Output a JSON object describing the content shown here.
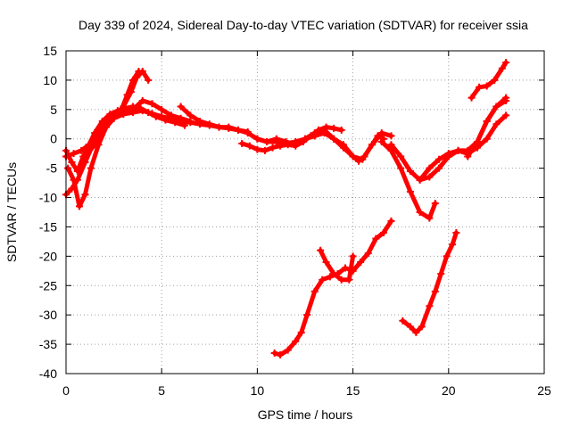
{
  "chart_data": {
    "type": "scatter",
    "title": "Day 339 of 2024, Sidereal Day-to-day VTEC variation (SDTVAR) for receiver ssia",
    "xlabel": "GPS time / hours",
    "ylabel": "SDTVAR / TECUs",
    "xlim": [
      0,
      25
    ],
    "ylim": [
      -40,
      15
    ],
    "xticks": [
      "0",
      "5",
      "10",
      "15",
      "20",
      "25"
    ],
    "yticks": [
      "15",
      "10",
      "5",
      "0",
      "-5",
      "-10",
      "-15",
      "-20",
      "-25",
      "-30",
      "-35",
      "-40"
    ],
    "grid": true,
    "marker": "plus",
    "series_color": "#ff0000",
    "series": [
      {
        "x": [
          0.0,
          0.4,
          0.8,
          1.2,
          1.6,
          2.0,
          2.5,
          3.0,
          3.5,
          4.0,
          4.5,
          5.0,
          5.5,
          6.0,
          6.5,
          7.0,
          7.5,
          8.0,
          8.5,
          9.0,
          9.5
        ],
        "values": [
          -3,
          -2.5,
          -2,
          -1,
          0.5,
          2.5,
          3.5,
          4.2,
          4.5,
          4.8,
          4.3,
          3.8,
          3.5,
          3.0,
          2.8,
          2.5,
          2.3,
          2.0,
          1.8,
          1.5,
          1.2
        ]
      },
      {
        "x": [
          0.0,
          0.3,
          0.6,
          1.0,
          1.4,
          1.8,
          2.2,
          2.6,
          3.0,
          3.4,
          3.7,
          4.0,
          4.3
        ],
        "values": [
          -9.5,
          -8.5,
          -7,
          -4,
          -1,
          1.5,
          3,
          4,
          5.5,
          8,
          10.5,
          11.5,
          10
        ]
      },
      {
        "x": [
          0.1,
          0.4,
          0.7,
          1.0,
          1.3,
          1.7,
          2.1,
          2.5,
          2.9,
          3.2,
          3.5,
          3.8
        ],
        "values": [
          -5,
          -7,
          -11.5,
          -9.5,
          -5,
          -1,
          2,
          3.5,
          5,
          7.5,
          10,
          11.5
        ]
      },
      {
        "x": [
          0.0,
          0.3,
          0.6,
          0.9,
          1.2,
          1.5,
          1.9,
          2.3,
          2.7,
          3.1,
          3.5,
          3.9,
          4.3,
          4.7,
          5.2,
          5.7,
          6.2
        ],
        "values": [
          -2,
          -4,
          -5.5,
          -3,
          -1,
          1,
          3,
          4.2,
          4.8,
          5.2,
          5.5,
          5.2,
          4.5,
          3.8,
          3.2,
          2.8,
          2.3
        ]
      },
      {
        "x": [
          1.0,
          1.5,
          2.0,
          2.5,
          3.0,
          3.5,
          4.0,
          4.5,
          5.0,
          5.5,
          6.0,
          6.5
        ],
        "values": [
          -3,
          -1,
          2,
          4,
          4.5,
          5,
          6.5,
          6,
          5,
          4,
          3.5,
          3
        ]
      },
      {
        "x": [
          6.0,
          6.5,
          7.0,
          7.5,
          8.0,
          8.5,
          9.0,
          9.5,
          10.0,
          10.5,
          11.0,
          11.5,
          12.0,
          12.5,
          13.0
        ],
        "values": [
          5.5,
          4,
          3,
          2.5,
          2,
          2,
          1.5,
          1,
          0,
          -0.5,
          -0.5,
          -0.8,
          -0.5,
          0,
          0.5
        ]
      },
      {
        "x": [
          9.2,
          9.6,
          10.0,
          10.4,
          10.8,
          11.2,
          11.6,
          12.0,
          12.4,
          12.8,
          13.2,
          13.6,
          14.0,
          14.4
        ],
        "values": [
          -0.8,
          -1.2,
          -1.8,
          -2,
          -1.5,
          -1.2,
          -1,
          -1.2,
          -0.5,
          0.5,
          1.5,
          2,
          1.8,
          1.5
        ]
      },
      {
        "x": [
          10.0,
          10.5,
          11.0,
          11.5,
          12.0,
          12.5,
          13.0,
          13.5,
          14.0,
          14.5,
          15.0,
          15.5,
          16.0,
          16.5,
          17.0
        ],
        "values": [
          0,
          -0.5,
          0,
          -0.5,
          -1,
          0,
          1,
          1.5,
          0,
          -1,
          -3,
          -3.5,
          -1,
          1,
          0.5
        ]
      },
      {
        "x": [
          13.0,
          13.5,
          14.0,
          14.5,
          15.0,
          15.3,
          15.6,
          16.0,
          16.3,
          16.6
        ],
        "values": [
          0.5,
          1,
          0,
          -1.5,
          -3,
          -3.8,
          -3,
          -1,
          0.5,
          0
        ]
      },
      {
        "x": [
          16.5,
          17.0,
          17.5,
          18.0,
          18.5,
          19.0,
          19.3
        ],
        "values": [
          -0.5,
          -2,
          -5,
          -9,
          -12.5,
          -13.5,
          -11
        ]
      },
      {
        "x": [
          17.0,
          17.5,
          18.0,
          18.5,
          19.0,
          19.5,
          20.0,
          20.5,
          21.0
        ],
        "values": [
          -1,
          -3,
          -5.5,
          -7,
          -6.5,
          -5,
          -3,
          -2,
          -2.5
        ]
      },
      {
        "x": [
          18.5,
          19.0,
          19.5,
          20.0,
          20.5,
          21.0,
          21.5,
          22.0,
          22.5,
          23.0
        ],
        "values": [
          -7,
          -5,
          -3.5,
          -2.5,
          -2,
          -2.5,
          -1.5,
          0,
          2.5,
          4
        ]
      },
      {
        "x": [
          20.0,
          20.5,
          21.0,
          21.5,
          22.0,
          22.5,
          23.0
        ],
        "values": [
          -3,
          -2,
          -2,
          -0.5,
          3,
          5.5,
          7
        ]
      },
      {
        "x": [
          21.0,
          21.5,
          22.0,
          22.5,
          23.0
        ],
        "values": [
          -3,
          -0.5,
          3,
          5.5,
          6.5
        ]
      },
      {
        "x": [
          21.2,
          21.6,
          22.0,
          22.4,
          22.8,
          23.0
        ],
        "values": [
          7,
          8.8,
          9,
          10,
          12,
          13
        ]
      },
      {
        "x": [
          13.3,
          13.6,
          14.0,
          14.4,
          14.8,
          15.0
        ],
        "values": [
          -19,
          -21,
          -23,
          -24,
          -24,
          -20
        ]
      },
      {
        "x": [
          10.9,
          11.2,
          11.6,
          12.0,
          12.3,
          12.6,
          13.0,
          13.4,
          13.8,
          14.2,
          14.6,
          15.0,
          15.4,
          15.8,
          16.2,
          16.6,
          17.0
        ],
        "values": [
          -36.5,
          -36.8,
          -36,
          -34.5,
          -33,
          -30,
          -26,
          -24,
          -23.5,
          -23,
          -22,
          -22.5,
          -21,
          -19.5,
          -17,
          -16,
          -14
        ]
      },
      {
        "x": [
          17.6,
          18.0,
          18.3,
          18.6,
          19.0,
          19.3,
          19.6,
          19.9,
          20.2,
          20.4
        ],
        "values": [
          -31,
          -32,
          -33,
          -32,
          -28.5,
          -26,
          -23,
          -20,
          -18,
          -16
        ]
      }
    ]
  }
}
